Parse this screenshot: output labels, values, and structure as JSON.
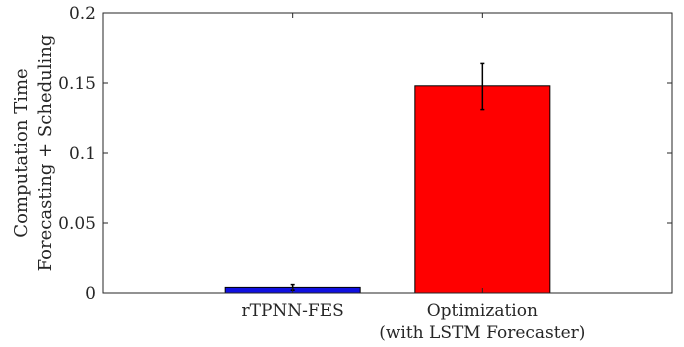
{
  "chart_data": {
    "type": "bar",
    "categories": [
      "rTPNN-FES",
      "Optimization\n(with LSTM Forecaster)"
    ],
    "values": [
      0.004,
      0.148
    ],
    "error_bars": [
      {
        "lower": 0.002,
        "upper": 0.006
      },
      {
        "lower": 0.131,
        "upper": 0.164
      }
    ],
    "bar_colors": [
      "#1010e0",
      "#ff0000"
    ],
    "title": "",
    "xlabel": "",
    "ylabel_line1": "Computation Time",
    "ylabel_line2": "Forecasting + Scheduling",
    "ylim": [
      0,
      0.2
    ],
    "yticks": [
      "0",
      "0.05",
      "0.1",
      "0.15",
      "0.2"
    ],
    "ytick_values": [
      0,
      0.05,
      0.1,
      0.15,
      0.2
    ],
    "grid": false
  }
}
